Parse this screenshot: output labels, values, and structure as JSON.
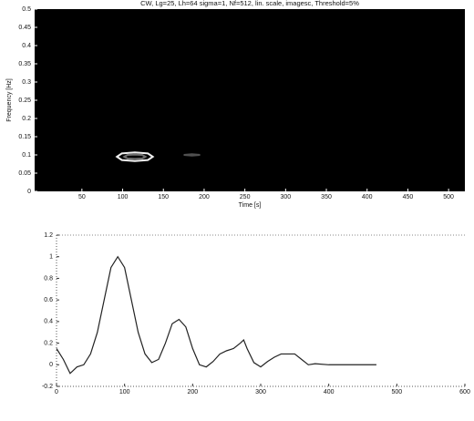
{
  "chart_data": [
    {
      "type": "contour",
      "title": "CW, Lg=25, Lh=64 sigma=1, Nf=512, lin. scale, imagesc, Threshold=5%",
      "x_label": "Time [s]",
      "y_label": "Frequency [Hz]",
      "background": "#000000",
      "xlim": [
        -8,
        520
      ],
      "ylim": [
        0,
        0.5
      ],
      "xticks": [
        50,
        100,
        150,
        200,
        250,
        300,
        350,
        400,
        450,
        500
      ],
      "yticks": [
        0,
        0.05,
        0.1,
        0.15,
        0.2,
        0.25,
        0.3,
        0.35,
        0.4,
        0.45,
        0.5
      ],
      "series": [
        {
          "color": "#f0f0f0",
          "x": [
            137,
            131,
            115,
            99,
            93,
            99,
            115,
            131,
            137
          ],
          "y": [
            0.095,
            0.104,
            0.107,
            0.104,
            0.095,
            0.086,
            0.083,
            0.086,
            0.095
          ]
        },
        {
          "color": "#707070",
          "x": [
            128,
            124,
            115,
            106,
            102,
            106,
            115,
            124,
            128
          ],
          "y": [
            0.095,
            0.1,
            0.101,
            0.1,
            0.095,
            0.09,
            0.089,
            0.09,
            0.095
          ]
        },
        {
          "color": "#505050",
          "x": [
            175,
            185,
            195,
            185,
            175
          ],
          "y": [
            0.1,
            0.102,
            0.1,
            0.098,
            0.1
          ]
        }
      ]
    },
    {
      "type": "line",
      "xlim": [
        0,
        600
      ],
      "ylim": [
        -0.2,
        1.2
      ],
      "xticks": [
        0,
        100,
        200,
        300,
        400,
        500,
        600
      ],
      "yticks": [
        -0.2,
        0,
        0.2,
        0.4,
        0.6,
        0.8,
        1,
        1.2
      ],
      "series": [
        {
          "color": "#222222",
          "x": [
            0,
            10,
            20,
            30,
            40,
            50,
            60,
            70,
            80,
            90,
            100,
            110,
            120,
            130,
            140,
            150,
            160,
            170,
            180,
            190,
            200,
            210,
            220,
            230,
            240,
            250,
            260,
            270,
            275,
            280,
            290,
            300,
            310,
            320,
            330,
            340,
            350,
            360,
            370,
            380,
            400,
            420,
            440,
            470
          ],
          "y": [
            0.15,
            0.05,
            -0.08,
            -0.02,
            0.0,
            0.1,
            0.3,
            0.6,
            0.9,
            1.0,
            0.9,
            0.6,
            0.3,
            0.1,
            0.02,
            0.05,
            0.2,
            0.38,
            0.42,
            0.35,
            0.15,
            0.0,
            -0.02,
            0.03,
            0.1,
            0.13,
            0.15,
            0.2,
            0.23,
            0.15,
            0.02,
            -0.02,
            0.03,
            0.07,
            0.1,
            0.1,
            0.1,
            0.05,
            0.0,
            0.01,
            0.0,
            0.0,
            0.0,
            0.0
          ]
        }
      ]
    }
  ]
}
